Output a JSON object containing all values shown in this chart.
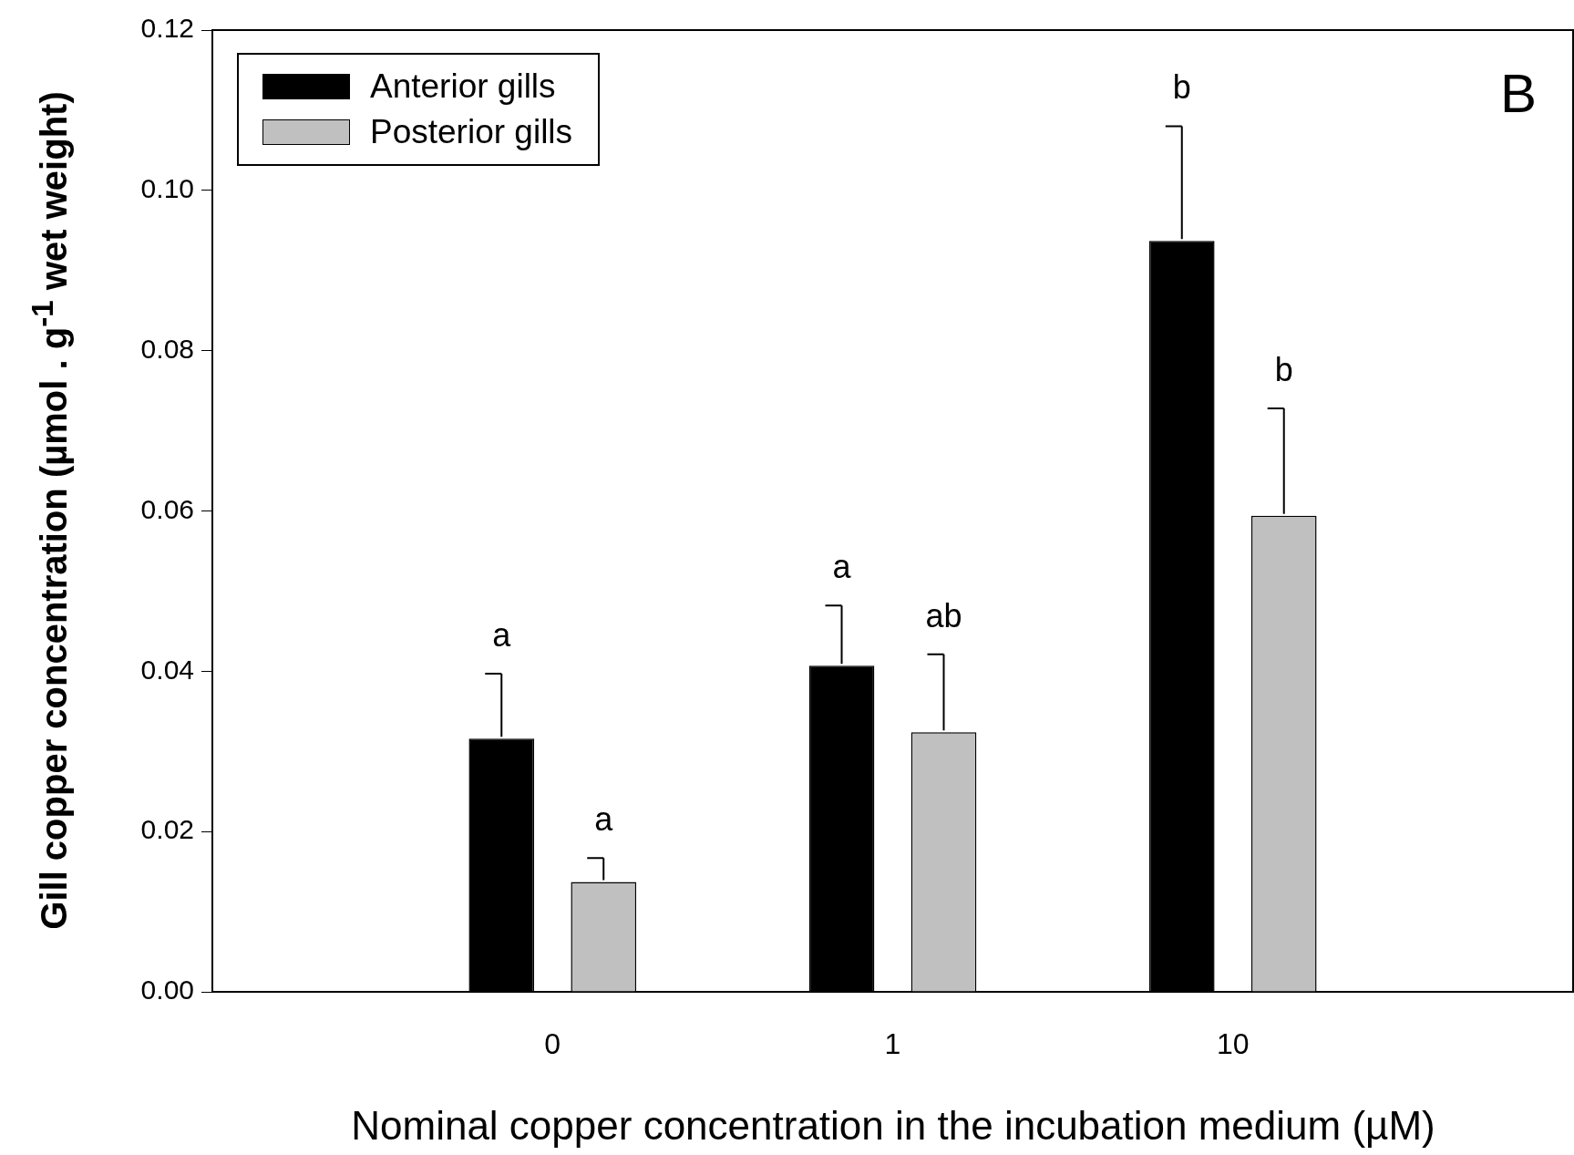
{
  "chart_data": {
    "type": "bar",
    "xlabel": "Nominal copper concentration in the incubation medium (µM)",
    "ylabel": "Gill copper concentration (µmol . g$^{-1}$ wet weight)",
    "categories": [
      "0",
      "1",
      "10"
    ],
    "series": [
      {
        "name": "Anterior gills",
        "color": "#000000",
        "values": [
          0.0316,
          0.0407,
          0.0937
        ],
        "errors": [
          [
            0.0316,
            0.0397
          ],
          [
            0.0407,
            0.0482
          ],
          [
            0.0937,
            0.108
          ]
        ]
      },
      {
        "name": "Posterior gills",
        "color": "#c0c0c0",
        "values": [
          0.0137,
          0.0324,
          0.0594
        ],
        "errors": [
          [
            0.0137,
            0.0167
          ],
          [
            0.0324,
            0.0421
          ],
          [
            0.0594,
            0.0728
          ]
        ]
      }
    ],
    "ylim": [
      0,
      0.12
    ],
    "yticks": [
      {
        "value": 0,
        "label": "0.00"
      },
      {
        "value": 0.02,
        "label": "0.02"
      },
      {
        "value": 0.04,
        "label": "0.04"
      },
      {
        "value": 0.06,
        "label": "0.06"
      },
      {
        "value": 0.08,
        "label": "0.08"
      },
      {
        "value": 0.1,
        "label": "0.10"
      },
      {
        "value": 0.12,
        "label": "0.12"
      }
    ],
    "grid": false,
    "legend": "top left",
    "annotations": [
      "a",
      "a",
      "a",
      "ab",
      "b",
      "b",
      "B"
    ]
  }
}
